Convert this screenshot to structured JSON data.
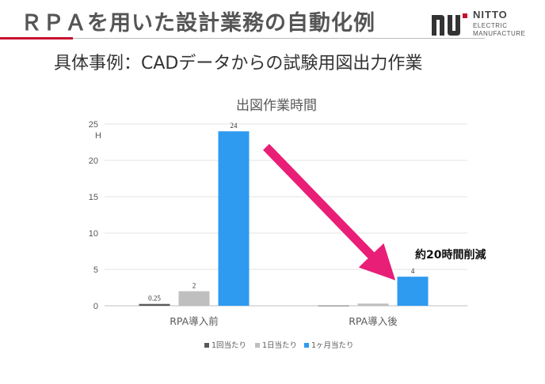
{
  "header": {
    "title": "ＲＰＡを用いた設計業務の自動化例",
    "subtitle": "具体事例：CADデータからの試験用図出力作業"
  },
  "logo": {
    "word": "NITTO",
    "line1": "ELECTRIC",
    "line2": "MANUFACTURE",
    "color": "#333333"
  },
  "colors": {
    "accent": "#c8102e",
    "arrow": "#e91e77"
  },
  "chart_data": {
    "type": "bar",
    "title": "出図作業時間",
    "ylabel": "H",
    "ylim": [
      0,
      25
    ],
    "yticks": [
      0,
      5,
      10,
      15,
      20,
      25
    ],
    "categories": [
      "RPA導入前",
      "RPA導入後"
    ],
    "series": [
      {
        "name": "1回当たり",
        "color": "#595959",
        "values": [
          0.25,
          0.03
        ],
        "labels": [
          "0.25",
          ""
        ]
      },
      {
        "name": "1日当たり",
        "color": "#bfbfbf",
        "values": [
          2,
          0.3
        ],
        "labels": [
          "2",
          ""
        ]
      },
      {
        "name": "1ヶ月当たり",
        "color": "#2e9bf0",
        "values": [
          24,
          4
        ],
        "labels": [
          "24",
          "4"
        ]
      }
    ],
    "grid": true,
    "legend": "bottom",
    "annotation": "約20時間削減"
  }
}
